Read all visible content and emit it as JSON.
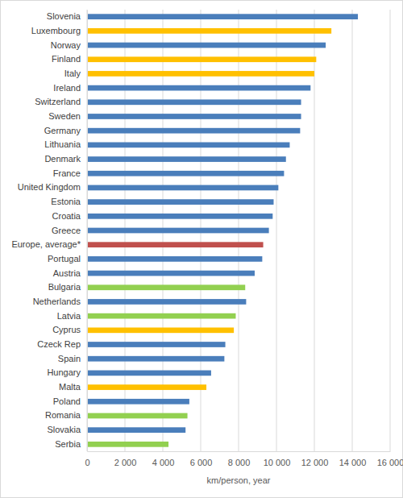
{
  "chart_data": {
    "type": "bar",
    "orientation": "horizontal",
    "categories": [
      "Slovenia",
      "Luxembourg",
      "Norway",
      "Finland",
      "Italy",
      "Ireland",
      "Switzerland",
      "Sweden",
      "Germany",
      "Lithuania",
      "Denmark",
      "France",
      "United Kingdom",
      "Estonia",
      "Croatia",
      "Greece",
      "Europe, average*",
      "Portugal",
      "Austria",
      "Bulgaria",
      "Netherlands",
      "Latvia",
      "Cyprus",
      "Czeck Rep",
      "Spain",
      "Hungary",
      "Malta",
      "Poland",
      "Romania",
      "Slovakia",
      "Serbia"
    ],
    "values": [
      14300,
      12900,
      12600,
      12100,
      12000,
      11800,
      11300,
      11300,
      11250,
      10700,
      10500,
      10400,
      10100,
      9850,
      9800,
      9600,
      9300,
      9250,
      8850,
      8350,
      8400,
      7850,
      7750,
      7300,
      7250,
      6550,
      6300,
      5400,
      5300,
      5200,
      4300
    ],
    "colors": [
      "#4a7ebb",
      "#ffc000",
      "#4a7ebb",
      "#ffc000",
      "#ffc000",
      "#4a7ebb",
      "#4a7ebb",
      "#4a7ebb",
      "#4a7ebb",
      "#4a7ebb",
      "#4a7ebb",
      "#4a7ebb",
      "#4a7ebb",
      "#4a7ebb",
      "#4a7ebb",
      "#4a7ebb",
      "#c0504d",
      "#4a7ebb",
      "#4a7ebb",
      "#92d050",
      "#4a7ebb",
      "#92d050",
      "#ffc000",
      "#4a7ebb",
      "#4a7ebb",
      "#4a7ebb",
      "#ffc000",
      "#4a7ebb",
      "#92d050",
      "#4a7ebb",
      "#92d050"
    ],
    "x_label": "km/person, year",
    "xlim": [
      0,
      16000
    ],
    "xticks": [
      0,
      {
        "value": 2000,
        "label": "2 000"
      },
      {
        "value": 4000,
        "label": "4 000"
      },
      {
        "value": 6000,
        "label": "6 000"
      },
      {
        "value": 8000,
        "label": "8 000"
      },
      {
        "value": 10000,
        "label": "10 000"
      },
      {
        "value": 12000,
        "label": "12 000"
      },
      {
        "value": 14000,
        "label": "14 000"
      },
      {
        "value": 16000,
        "label": "16 000"
      }
    ],
    "grid": true
  }
}
